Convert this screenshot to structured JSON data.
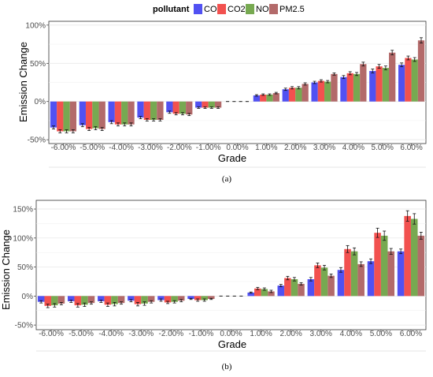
{
  "legend": {
    "title": "pollutant",
    "items": [
      "CO",
      "CO2",
      "NOx",
      "PM2.5"
    ],
    "colors": [
      "#5151f2",
      "#f2514f",
      "#77a951",
      "#b36a6a"
    ]
  },
  "chart_data": [
    {
      "type": "bar",
      "caption": "(a)",
      "xlabel": "Grade",
      "ylabel": "Emission Change",
      "categories": [
        "-6.00%",
        "-5.00%",
        "-4.00%",
        "-3.00%",
        "-2.00%",
        "-1.00%",
        "0.00%",
        "1.00%",
        "2.00%",
        "3.00%",
        "4.00%",
        "5.00%",
        "6.00%"
      ],
      "ylim": [
        -55,
        105
      ],
      "yticks": [
        -50,
        0,
        50,
        100
      ],
      "ytick_labels": [
        "-50%",
        "0%",
        "50%",
        "100%"
      ],
      "grid": true,
      "series": [
        {
          "name": "CO",
          "values": [
            -34,
            -31,
            -27,
            -21,
            -14,
            -8,
            0,
            8,
            16,
            25,
            32,
            40,
            48
          ],
          "errors": [
            2,
            2,
            2,
            1.5,
            1.5,
            1,
            0,
            1,
            1.5,
            1.5,
            2,
            2.5,
            2.5
          ]
        },
        {
          "name": "CO2",
          "values": [
            -39,
            -36,
            -30,
            -24,
            -16,
            -8,
            0,
            9,
            18,
            27,
            37,
            46,
            57
          ],
          "errors": [
            2,
            2,
            2,
            1.5,
            1.5,
            1,
            0,
            1,
            1.5,
            1.5,
            2,
            2.5,
            2.5
          ]
        },
        {
          "name": "NOx",
          "values": [
            -39,
            -35,
            -30,
            -24,
            -16,
            -8,
            0,
            9,
            18,
            26,
            36,
            44,
            55
          ],
          "errors": [
            2,
            2,
            2,
            1.5,
            1.5,
            1,
            0,
            1,
            1.5,
            1.5,
            2,
            2.5,
            2.5
          ]
        },
        {
          "name": "PM2.5",
          "values": [
            -39,
            -36,
            -30,
            -24,
            -17,
            -8,
            0,
            11,
            23,
            36,
            49,
            64,
            80
          ],
          "errors": [
            2,
            2,
            2,
            1.5,
            1.5,
            1,
            0,
            1,
            1.5,
            1.5,
            2.5,
            3,
            3.5
          ]
        }
      ]
    },
    {
      "type": "bar",
      "caption": "(b)",
      "xlabel": "Grade",
      "ylabel": "Emission Change",
      "categories": [
        "-6.00%",
        "-5.00%",
        "-4.00%",
        "-3.00%",
        "-2.00%",
        "-1.00%",
        "0.00%",
        "1.00%",
        "2.00%",
        "3.00%",
        "4.00%",
        "5.00%",
        "6.00%"
      ],
      "ylim": [
        -58,
        165
      ],
      "yticks": [
        -50,
        0,
        50,
        100,
        150
      ],
      "ytick_labels": [
        "-50%",
        "0%",
        "50%",
        "100%",
        "150%"
      ],
      "grid": true,
      "series": [
        {
          "name": "CO",
          "values": [
            -10,
            -9,
            -9,
            -8,
            -7,
            -5,
            0,
            6,
            18,
            29,
            45,
            60,
            77
          ],
          "errors": [
            2,
            2,
            2,
            2,
            2,
            1,
            0,
            1,
            2,
            3,
            4,
            4,
            4
          ]
        },
        {
          "name": "CO2",
          "values": [
            -17,
            -16,
            -15,
            -14,
            -11,
            -7,
            0,
            13,
            31,
            53,
            81,
            109,
            138
          ],
          "errors": [
            3,
            3,
            3,
            3,
            2,
            2,
            0,
            2,
            3,
            4,
            6,
            8,
            9
          ]
        },
        {
          "name": "NOx",
          "values": [
            -16,
            -15,
            -14,
            -13,
            -10,
            -7,
            0,
            12,
            29,
            49,
            77,
            104,
            133
          ],
          "errors": [
            3,
            3,
            3,
            3,
            2,
            2,
            0,
            2,
            3,
            4,
            6,
            8,
            9
          ]
        },
        {
          "name": "PM2.5",
          "values": [
            -13,
            -12,
            -12,
            -10,
            -8,
            -5,
            0,
            8,
            21,
            35,
            55,
            77,
            104
          ],
          "errors": [
            2,
            2,
            2,
            2,
            2,
            1,
            0,
            2,
            2,
            3,
            4,
            5,
            6
          ]
        }
      ]
    }
  ]
}
